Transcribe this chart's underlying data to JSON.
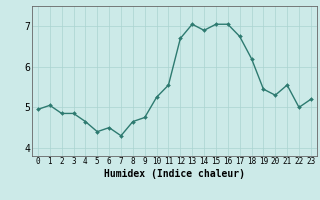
{
  "x": [
    0,
    1,
    2,
    3,
    4,
    5,
    6,
    7,
    8,
    9,
    10,
    11,
    12,
    13,
    14,
    15,
    16,
    17,
    18,
    19,
    20,
    21,
    22,
    23
  ],
  "y": [
    4.95,
    5.05,
    4.85,
    4.85,
    4.65,
    4.4,
    4.5,
    4.3,
    4.65,
    4.75,
    5.25,
    5.55,
    6.7,
    7.05,
    6.9,
    7.05,
    7.05,
    6.75,
    6.2,
    5.45,
    5.3,
    5.55,
    5.0,
    5.2
  ],
  "xlabel": "Humidex (Indice chaleur)",
  "xlim": [
    -0.5,
    23.5
  ],
  "ylim": [
    3.8,
    7.5
  ],
  "yticks": [
    4,
    5,
    6,
    7
  ],
  "xticks": [
    0,
    1,
    2,
    3,
    4,
    5,
    6,
    7,
    8,
    9,
    10,
    11,
    12,
    13,
    14,
    15,
    16,
    17,
    18,
    19,
    20,
    21,
    22,
    23
  ],
  "bg_color": "#cceae8",
  "line_color": "#2d7a70",
  "marker_color": "#2d7a70",
  "grid_color": "#aad4d0",
  "tick_fontsize": 5.5,
  "xlabel_fontsize": 7
}
